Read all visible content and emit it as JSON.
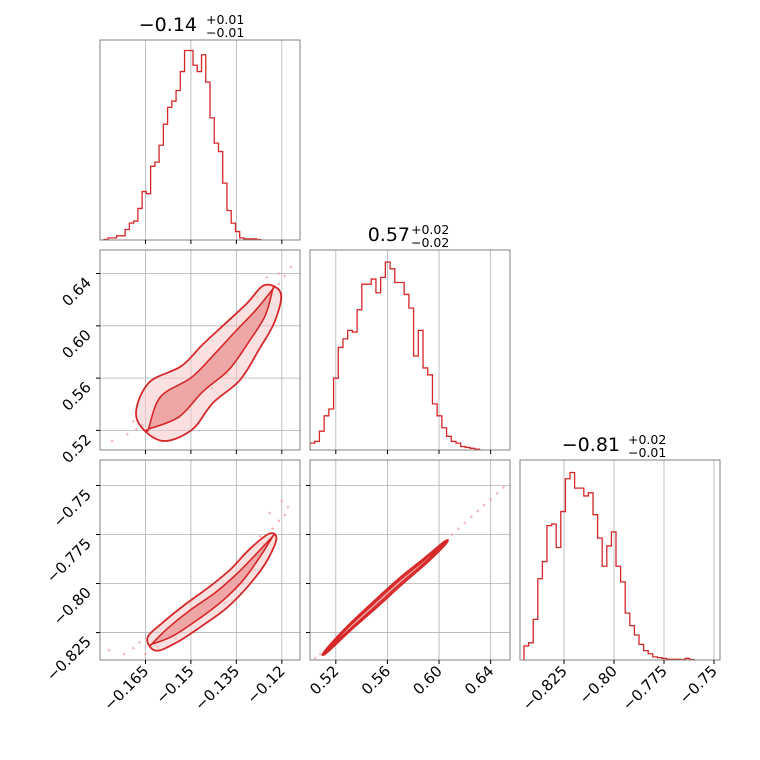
{
  "colors": {
    "line": "#d62728",
    "point": "#f4a3a3",
    "fill_inner": "#eda0a0",
    "grid": "#b0b0b0",
    "frame": "#808080"
  },
  "chart_data": [
    {
      "type": "histogram",
      "panel": "diag-1",
      "title": {
        "value": "−0.14",
        "sup": "+0.01",
        "sub": "−0.01"
      },
      "xlim": [
        -0.18,
        -0.114
      ],
      "x_start": -0.1787,
      "bin_width": 0.0014,
      "counts": [
        0.3,
        1,
        1,
        2,
        2,
        5,
        8,
        9,
        15,
        23,
        22,
        35,
        37,
        45,
        55,
        63,
        66,
        71,
        80,
        90,
        90,
        83,
        80,
        88,
        75,
        58,
        46,
        42,
        27,
        14,
        8,
        4,
        1,
        0.5,
        0.5,
        0.5,
        0.2
      ],
      "ymax": 95,
      "xticks": [
        -0.165,
        -0.15,
        -0.135,
        -0.12
      ]
    },
    {
      "type": "histogram",
      "panel": "diag-2",
      "title": {
        "value": "0.57",
        "sup": "+0.02",
        "sub": "−0.02"
      },
      "xlim": [
        0.5,
        0.655
      ],
      "x_start": 0.5,
      "bin_width": 0.00365,
      "counts": [
        4,
        5,
        11,
        20,
        24,
        42,
        60,
        65,
        70,
        69,
        82,
        97,
        97,
        100,
        92,
        101,
        110,
        106,
        98,
        98,
        91,
        83,
        55,
        70,
        48,
        44,
        27,
        20,
        13,
        8,
        5,
        4,
        2,
        1.5,
        1,
        0.5
      ],
      "ymax": 117,
      "xticks": [
        0.52,
        0.56,
        0.6,
        0.64
      ]
    },
    {
      "type": "histogram",
      "panel": "diag-3",
      "title": {
        "value": "−0.81",
        "sup": "+0.02",
        "sub": "−0.01"
      },
      "xlim": [
        -0.847,
        -0.747
      ],
      "x_start": -0.845,
      "bin_width": 0.0023,
      "counts": [
        9,
        11,
        26,
        52,
        63,
        86,
        87,
        72,
        95,
        116,
        120,
        110,
        110,
        105,
        107,
        93,
        78,
        60,
        73,
        82,
        60,
        50,
        30,
        22,
        16,
        10,
        6,
        4,
        2,
        1.5,
        1,
        0.5,
        0.5,
        0.5,
        0.3,
        1,
        0.3
      ],
      "ymax": 128,
      "xticks": [
        -0.825,
        -0.8,
        -0.775,
        -0.75
      ]
    },
    {
      "type": "contour",
      "panel": "cross-21",
      "x_param": 1,
      "y_param": 2,
      "xlim": [
        -0.18,
        -0.114
      ],
      "ylim": [
        0.505,
        0.658
      ],
      "yticks": [
        0.52,
        0.56,
        0.6,
        0.64
      ],
      "ridge": [
        [
          -0.164,
          0.521
        ],
        [
          -0.157,
          0.538
        ],
        [
          -0.148,
          0.555
        ],
        [
          -0.14,
          0.572
        ],
        [
          -0.133,
          0.592
        ],
        [
          -0.127,
          0.61
        ],
        [
          -0.123,
          0.628
        ]
      ],
      "outer_width": [
        0.0055,
        0.0105,
        0.008,
        0.0085,
        0.007,
        0.0055,
        0.003
      ],
      "inner_width": [
        0.0,
        0.0045,
        0.003,
        0.0035,
        0.0028,
        0.0018,
        0.0
      ],
      "scatter": [
        [
          -0.176,
          0.512
        ],
        [
          -0.171,
          0.517
        ],
        [
          -0.168,
          0.521
        ],
        [
          -0.166,
          0.524
        ],
        [
          -0.169,
          0.527
        ],
        [
          -0.162,
          0.515
        ],
        [
          -0.161,
          0.528
        ],
        [
          -0.158,
          0.533
        ],
        [
          -0.154,
          0.53
        ],
        [
          -0.152,
          0.545
        ],
        [
          -0.151,
          0.536
        ],
        [
          -0.143,
          0.552
        ],
        [
          -0.147,
          0.561
        ],
        [
          -0.138,
          0.563
        ],
        [
          -0.135,
          0.585
        ],
        [
          -0.131,
          0.6
        ],
        [
          -0.126,
          0.617
        ],
        [
          -0.124,
          0.623
        ],
        [
          -0.121,
          0.632
        ],
        [
          -0.119,
          0.638
        ],
        [
          -0.117,
          0.645
        ],
        [
          -0.121,
          0.64
        ],
        [
          -0.125,
          0.637
        ],
        [
          -0.128,
          0.622
        ]
      ]
    },
    {
      "type": "contour",
      "panel": "cross-31",
      "x_param": 1,
      "y_param": 3,
      "xlim": [
        -0.18,
        -0.114
      ],
      "ylim": [
        -0.839,
        -0.737
      ],
      "yticks": [
        -0.825,
        -0.8,
        -0.775,
        -0.75
      ],
      "ridge": [
        [
          -0.163,
          -0.831
        ],
        [
          -0.157,
          -0.825
        ],
        [
          -0.149,
          -0.816
        ],
        [
          -0.141,
          -0.807
        ],
        [
          -0.134,
          -0.797
        ],
        [
          -0.128,
          -0.786
        ],
        [
          -0.123,
          -0.776
        ]
      ],
      "outer_width": [
        0.0025,
        0.004,
        0.0045,
        0.0045,
        0.004,
        0.0035,
        0.0015
      ],
      "inner_width": [
        0.0,
        0.0015,
        0.002,
        0.0018,
        0.0015,
        0.0008,
        0.0
      ],
      "scatter": [
        [
          -0.177,
          -0.834
        ],
        [
          -0.172,
          -0.836
        ],
        [
          -0.169,
          -0.833
        ],
        [
          -0.167,
          -0.83
        ],
        [
          -0.165,
          -0.836
        ],
        [
          -0.161,
          -0.832
        ],
        [
          -0.155,
          -0.828
        ],
        [
          -0.152,
          -0.822
        ],
        [
          -0.147,
          -0.817
        ],
        [
          -0.139,
          -0.81
        ],
        [
          -0.133,
          -0.8
        ],
        [
          -0.129,
          -0.793
        ],
        [
          -0.126,
          -0.78
        ],
        [
          -0.123,
          -0.772
        ],
        [
          -0.121,
          -0.768
        ],
        [
          -0.119,
          -0.765
        ],
        [
          -0.118,
          -0.761
        ],
        [
          -0.12,
          -0.758
        ],
        [
          -0.124,
          -0.764
        ],
        [
          -0.127,
          -0.776
        ]
      ]
    },
    {
      "type": "contour",
      "panel": "cross-32",
      "x_param": 2,
      "y_param": 3,
      "xlim": [
        0.5,
        0.655
      ],
      "ylim": [
        -0.839,
        -0.737
      ],
      "ridge": [
        [
          0.512,
          -0.835
        ],
        [
          0.53,
          -0.823
        ],
        [
          0.55,
          -0.811
        ],
        [
          0.57,
          -0.799
        ],
        [
          0.59,
          -0.788
        ],
        [
          0.605,
          -0.779
        ]
      ],
      "outer_width": [
        0.001,
        0.002,
        0.0025,
        0.0025,
        0.002,
        0.001
      ],
      "inner_width": [
        0.0,
        0.001,
        0.0012,
        0.0012,
        0.0008,
        0.0
      ],
      "scatter": [
        [
          0.504,
          -0.838
        ],
        [
          0.508,
          -0.836
        ],
        [
          0.515,
          -0.832
        ],
        [
          0.52,
          -0.829
        ],
        [
          0.525,
          -0.826
        ],
        [
          0.61,
          -0.775
        ],
        [
          0.615,
          -0.772
        ],
        [
          0.62,
          -0.769
        ],
        [
          0.625,
          -0.766
        ],
        [
          0.63,
          -0.763
        ],
        [
          0.635,
          -0.76
        ],
        [
          0.64,
          -0.757
        ],
        [
          0.645,
          -0.754
        ],
        [
          0.65,
          -0.751
        ]
      ]
    }
  ]
}
